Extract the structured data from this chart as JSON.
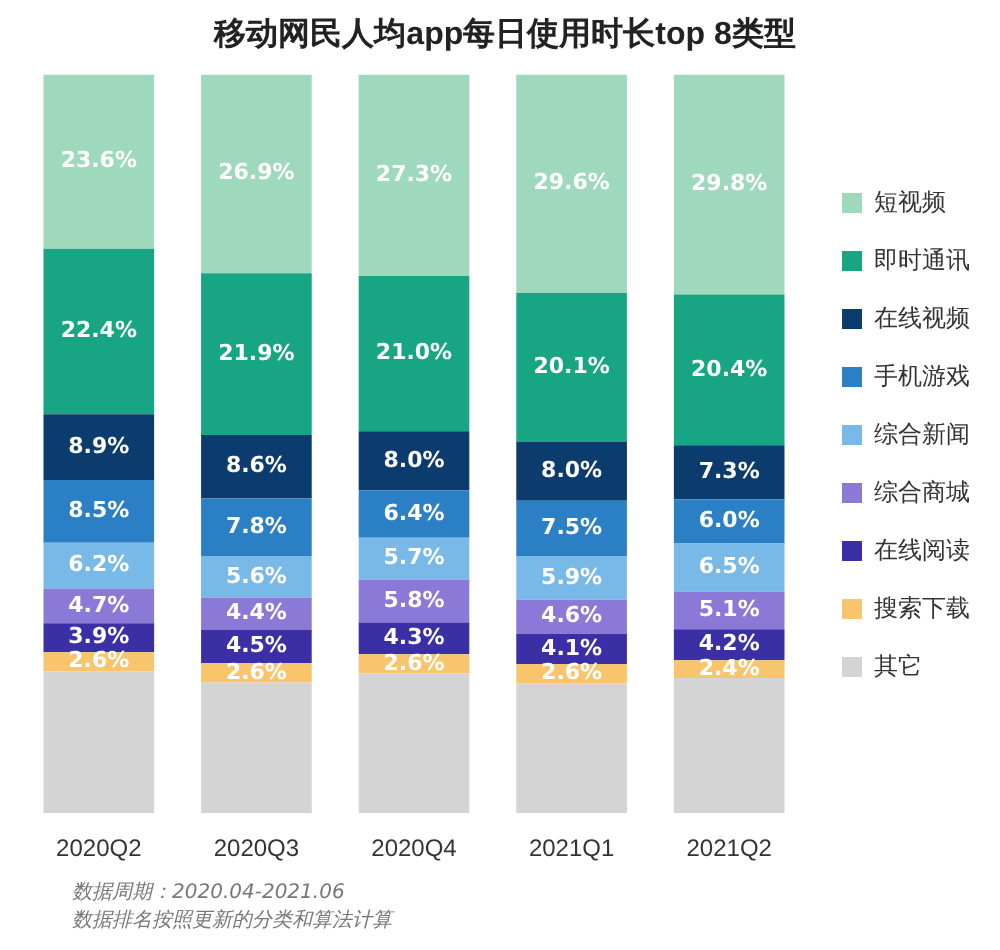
{
  "chart_data": {
    "type": "bar",
    "stacked": true,
    "title": "移动网民人均app每日使用时长top 8类型",
    "categories": [
      "2020Q2",
      "2020Q3",
      "2020Q4",
      "2021Q1",
      "2021Q2"
    ],
    "series": [
      {
        "name": "其它",
        "color": "#d4d4d4",
        "values": [
          19.2,
          17.7,
          18.9,
          17.6,
          18.3
        ],
        "value_labels": [
          null,
          null,
          null,
          null,
          null
        ]
      },
      {
        "name": "搜索下载",
        "color": "#f8c46c",
        "values": [
          2.6,
          2.6,
          2.6,
          2.6,
          2.4
        ],
        "value_labels": [
          "2.6%",
          "2.6%",
          "2.6%",
          "2.6%",
          "2.4%"
        ]
      },
      {
        "name": "在线阅读",
        "color": "#3b2fa6",
        "values": [
          3.9,
          4.5,
          4.3,
          4.1,
          4.2
        ],
        "value_labels": [
          "3.9%",
          "4.5%",
          "4.3%",
          "4.1%",
          "4.2%"
        ]
      },
      {
        "name": "综合商城",
        "color": "#8a79d6",
        "values": [
          4.7,
          4.4,
          5.8,
          4.6,
          5.1
        ],
        "value_labels": [
          "4.7%",
          "4.4%",
          "5.8%",
          "4.6%",
          "5.1%"
        ]
      },
      {
        "name": "综合新闻",
        "color": "#79b9e8",
        "values": [
          6.2,
          5.6,
          5.7,
          5.9,
          6.5
        ],
        "value_labels": [
          "6.2%",
          "5.6%",
          "5.7%",
          "5.9%",
          "6.5%"
        ]
      },
      {
        "name": "手机游戏",
        "color": "#2b80c5",
        "values": [
          8.5,
          7.8,
          6.4,
          7.5,
          6.0
        ],
        "value_labels": [
          "8.5%",
          "7.8%",
          "6.4%",
          "7.5%",
          "6.0%"
        ]
      },
      {
        "name": "在线视频",
        "color": "#0c3c6d",
        "values": [
          8.9,
          8.6,
          8.0,
          8.0,
          7.3
        ],
        "value_labels": [
          "8.9%",
          "8.6%",
          "8.0%",
          "8.0%",
          "7.3%"
        ]
      },
      {
        "name": "即时通讯",
        "color": "#17a583",
        "values": [
          22.4,
          21.9,
          21.0,
          20.1,
          20.4
        ],
        "value_labels": [
          "22.4%",
          "21.9%",
          "21.0%",
          "20.1%",
          "20.4%"
        ]
      },
      {
        "name": "短视频",
        "color": "#9fd9bd",
        "values": [
          23.6,
          26.9,
          27.3,
          29.6,
          29.8
        ],
        "value_labels": [
          "23.6%",
          "26.9%",
          "27.3%",
          "29.6%",
          "29.8%"
        ]
      }
    ],
    "legend": "right",
    "grid": false,
    "annotations": [
      "数据周期：2020.04-2021.06",
      "数据排名按照更新的分类和算法计算"
    ]
  }
}
